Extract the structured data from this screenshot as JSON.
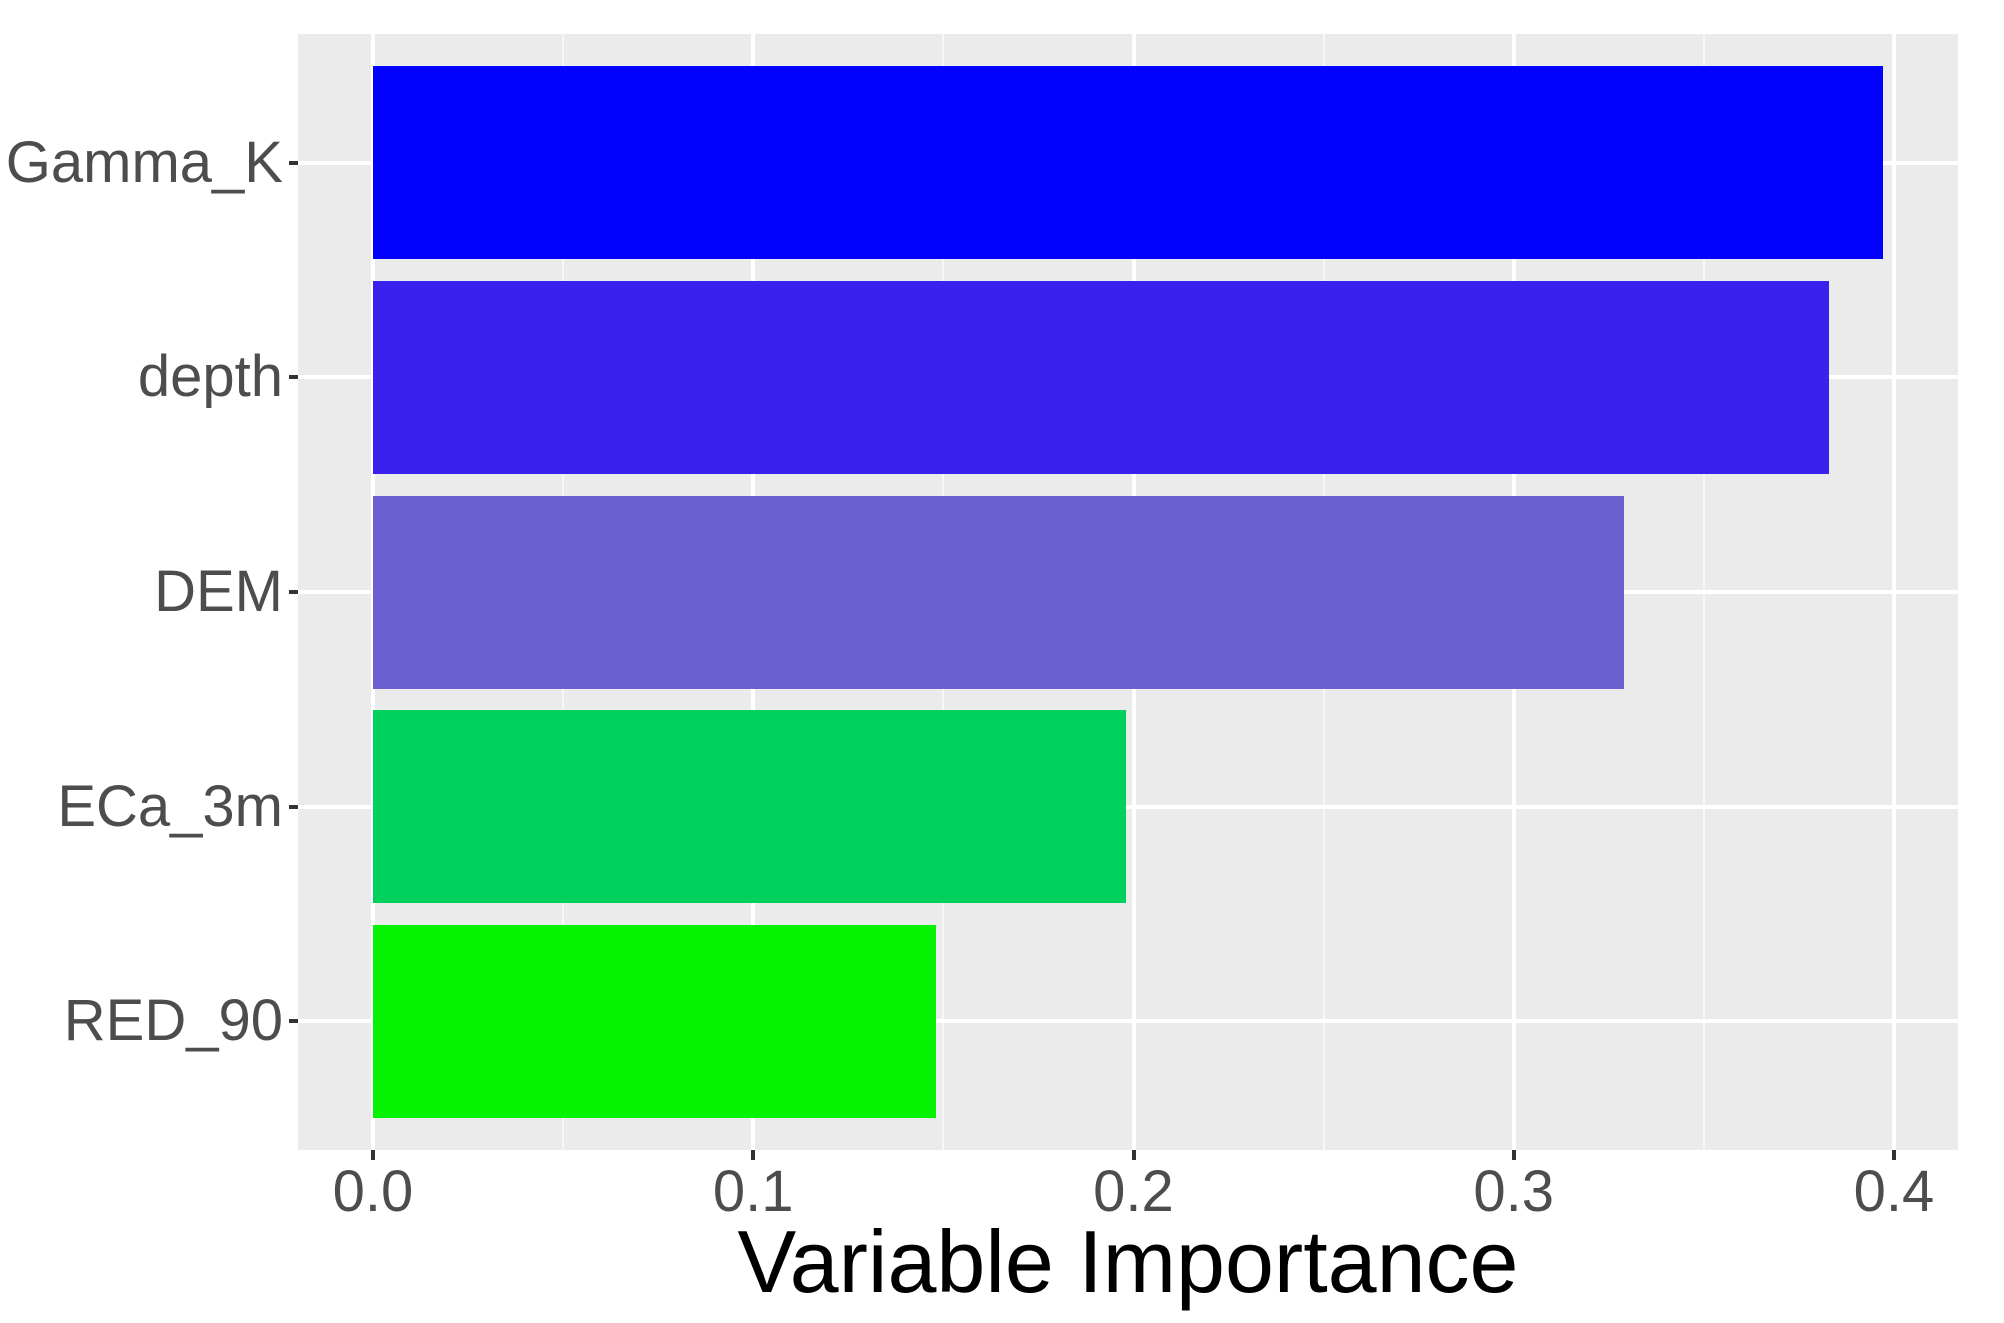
{
  "chart_data": {
    "type": "bar",
    "orientation": "horizontal",
    "title": "",
    "xlabel": "Variable Importance",
    "ylabel": "",
    "categories": [
      "Gamma_K",
      "depth",
      "DEM",
      "ECa_3m",
      "RED_90"
    ],
    "values": [
      0.397,
      0.383,
      0.329,
      0.198,
      0.148
    ],
    "bar_colors": [
      "#0101FC",
      "#3B21EE",
      "#6C5FD0",
      "#00D05C",
      "#05F303"
    ],
    "xlim": [
      -0.02,
      0.418
    ],
    "x_ticks": [
      {
        "label": "0.0",
        "value": 0.0
      },
      {
        "label": "0.1",
        "value": 0.1
      },
      {
        "label": "0.2",
        "value": 0.2
      },
      {
        "label": "0.3",
        "value": 0.3
      },
      {
        "label": "0.4",
        "value": 0.4
      }
    ],
    "x_minor_ticks": [
      0.05,
      0.15,
      0.25,
      0.35
    ],
    "grid": true,
    "legend": false,
    "colors": {
      "panel_background": "#EBEBEB",
      "major_gridline": "#FFFFFF",
      "minor_gridline": "#F7F7F7",
      "tick_mark": "#333333",
      "tick_label": "#4D4D4D",
      "axis_title": "#000000",
      "figure_background": "#FFFFFF"
    }
  }
}
